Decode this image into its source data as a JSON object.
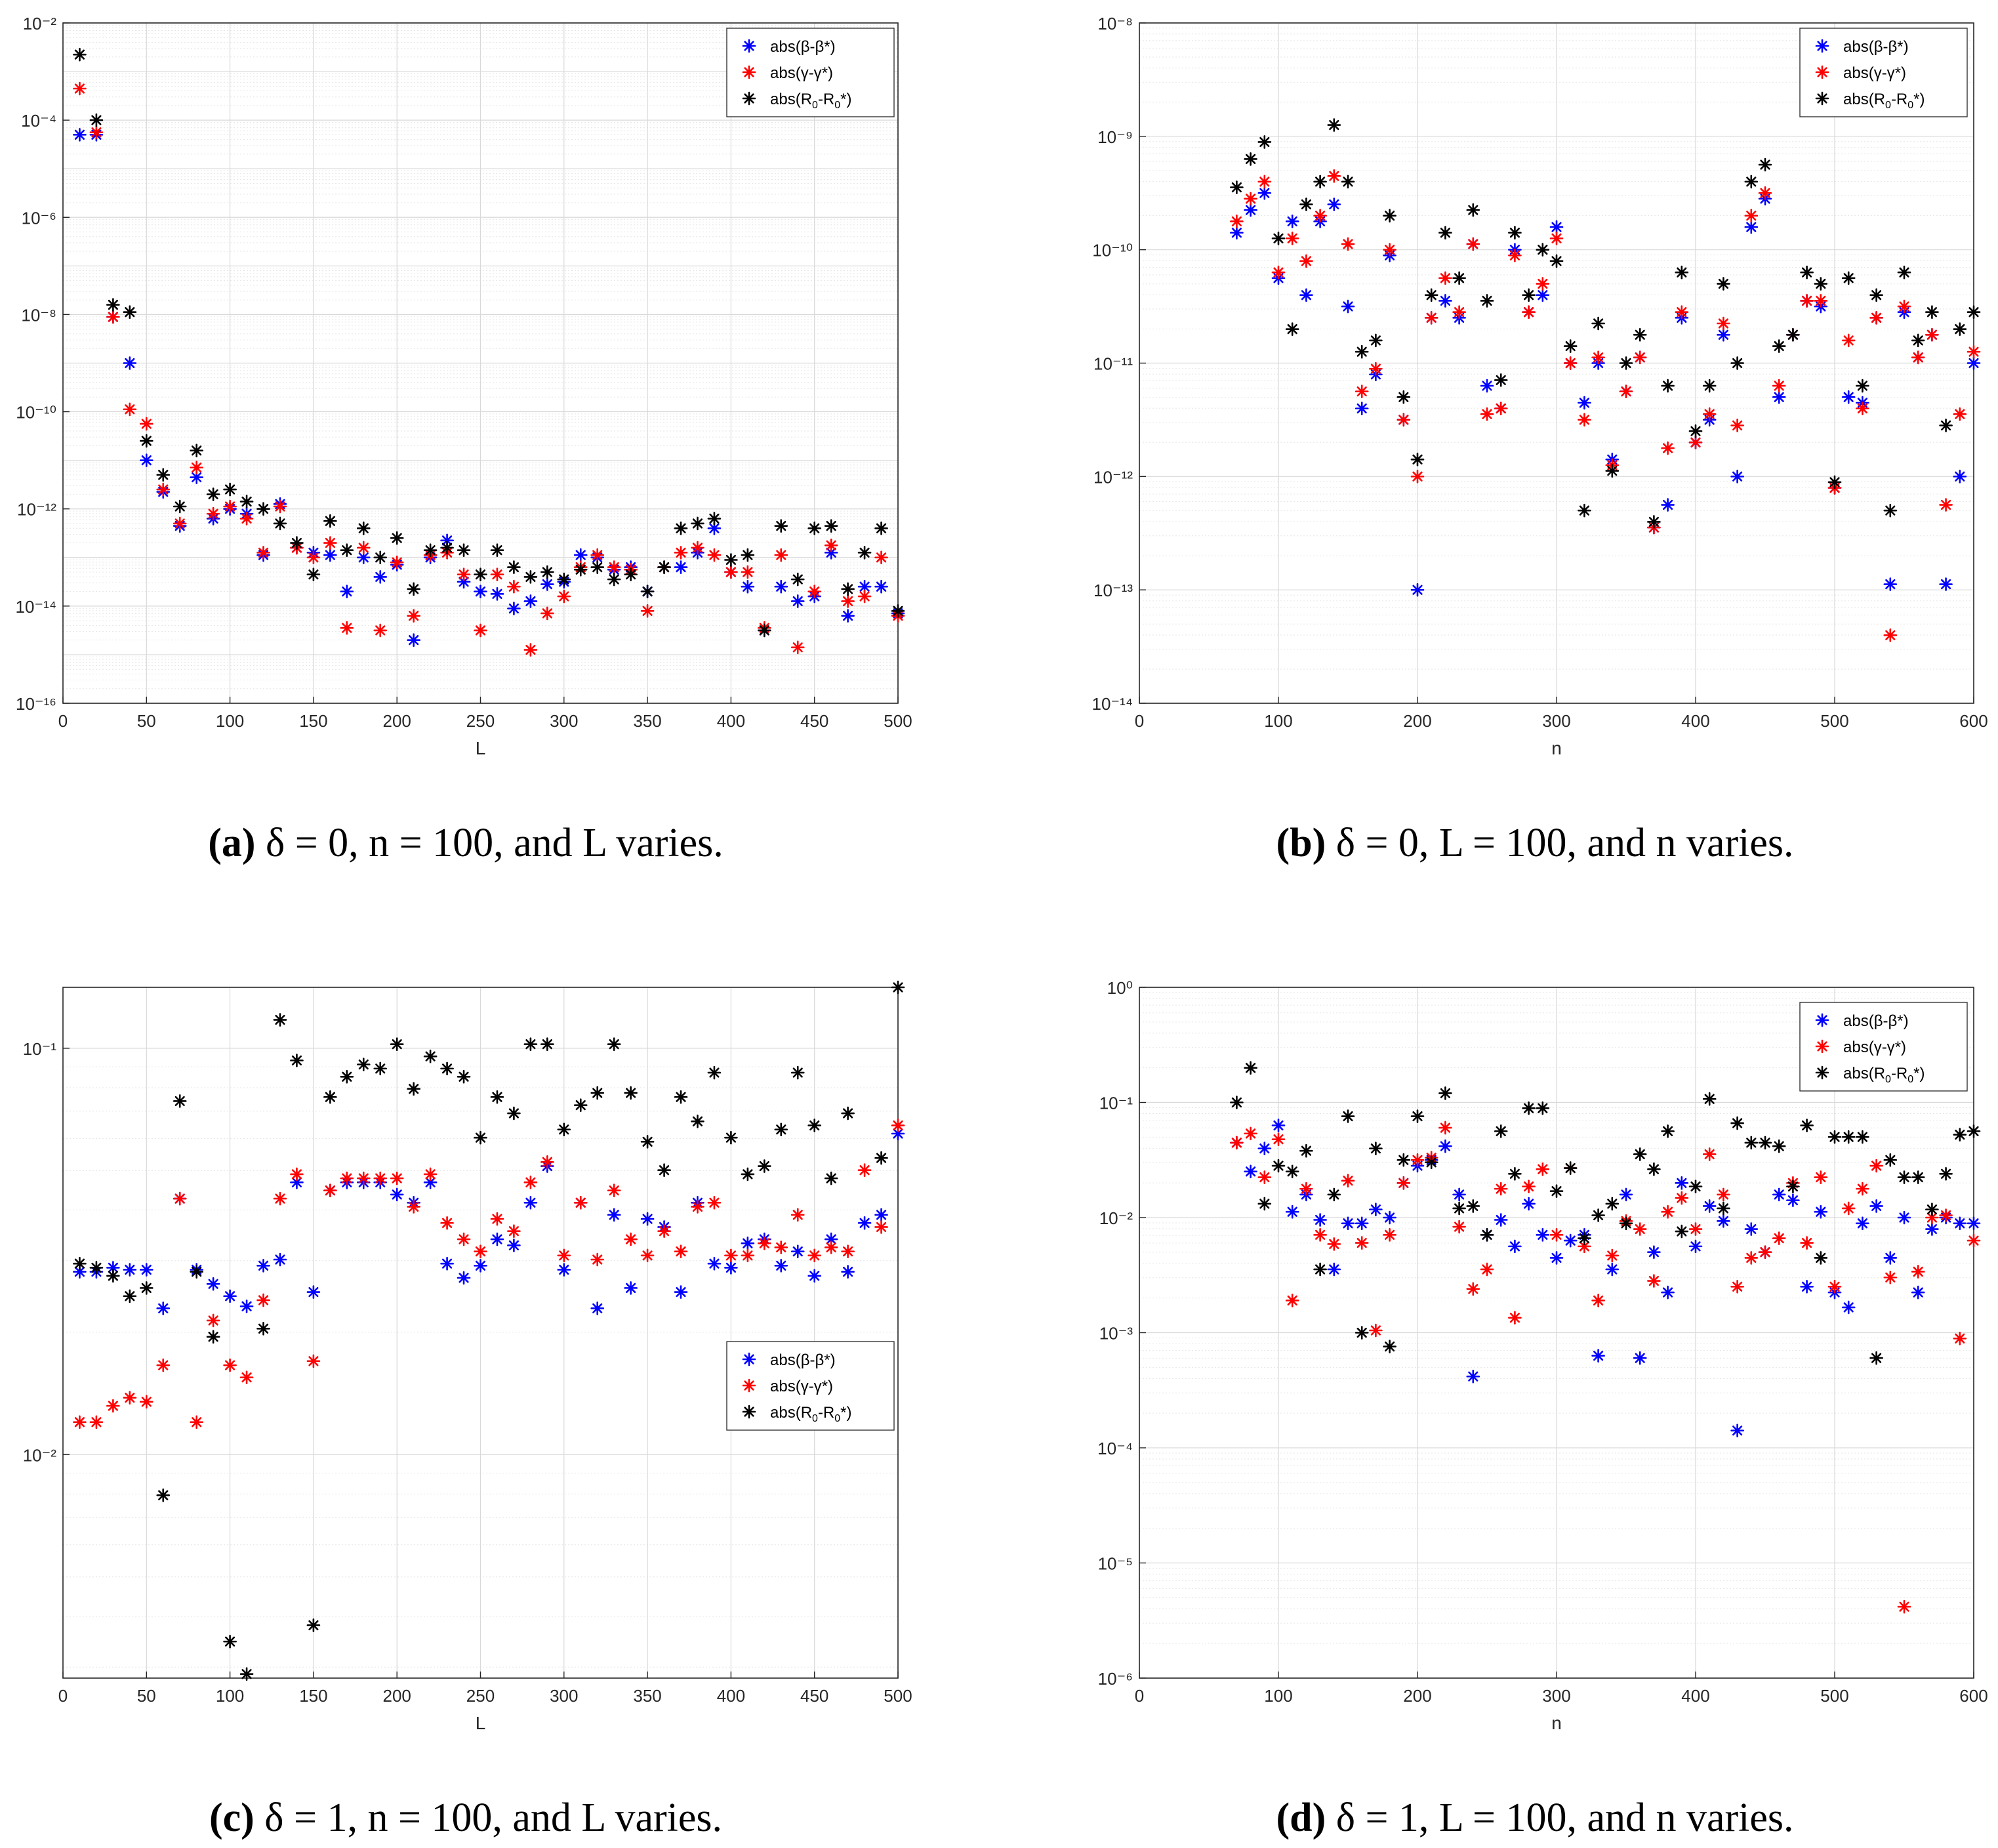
{
  "series_style": {
    "beta": {
      "color": "#0000ff",
      "legend_main": "abs(β-β",
      "legend_tail": "*)"
    },
    "gamma": {
      "color": "#ff0000",
      "legend_main": "abs(γ-γ",
      "legend_tail": "*)"
    },
    "r0": {
      "color": "#000000",
      "legend_prefix": "abs(R",
      "legend_sub1": "0",
      "legend_mid": "-R",
      "legend_sub2": "0",
      "legend_tail": "*)"
    }
  },
  "grid_color": "#e6e6e6",
  "chart_data": [
    {
      "id": "a",
      "type": "scatter",
      "yscale": "log",
      "title": "",
      "xlabel": "L",
      "xlim": [
        0,
        500
      ],
      "xticks": [
        0,
        50,
        100,
        150,
        200,
        250,
        300,
        350,
        400,
        450,
        500
      ],
      "ylim_exp": [
        -16,
        -2
      ],
      "yticks_exp": [
        -16,
        -14,
        -12,
        -10,
        -8,
        -6,
        -4,
        -2
      ],
      "legend_position": "top-right",
      "x": [
        10,
        20,
        30,
        40,
        50,
        60,
        70,
        80,
        90,
        100,
        110,
        120,
        130,
        140,
        150,
        160,
        170,
        180,
        190,
        200,
        210,
        220,
        230,
        240,
        250,
        260,
        270,
        280,
        290,
        300,
        310,
        320,
        330,
        340,
        350,
        360,
        370,
        380,
        390,
        400,
        410,
        420,
        430,
        440,
        450,
        460,
        470,
        480,
        490,
        500
      ],
      "series": [
        {
          "key": "beta",
          "log10": [
            -4.3,
            -4.3,
            -8.05,
            -9.0,
            -11.0,
            -11.65,
            -12.35,
            -11.35,
            -12.2,
            -12.0,
            -12.1,
            -12.95,
            -11.9,
            -12.8,
            -12.9,
            -12.95,
            -13.7,
            -13.0,
            -13.4,
            -13.15,
            -14.7,
            -13.0,
            -12.65,
            -13.5,
            -13.7,
            -13.75,
            -14.05,
            -13.9,
            -13.55,
            -13.5,
            -12.95,
            -13.0,
            -13.25,
            -13.2,
            -13.7,
            -13.2,
            -13.2,
            -12.9,
            -12.4,
            -13.3,
            -13.6,
            -14.5,
            -13.6,
            -13.9,
            -13.8,
            -12.9,
            -14.2,
            -13.6,
            -13.6,
            -14.15
          ]
        },
        {
          "key": "gamma",
          "log10": [
            -3.35,
            -4.25,
            -8.05,
            -9.95,
            -10.25,
            -11.6,
            -12.3,
            -11.15,
            -12.1,
            -11.95,
            -12.2,
            -12.9,
            -11.95,
            -12.8,
            -13.0,
            -12.7,
            -14.45,
            -12.8,
            -14.5,
            -13.1,
            -14.2,
            -12.95,
            -12.9,
            -13.35,
            -14.5,
            -13.35,
            -13.6,
            -14.9,
            -14.15,
            -13.8,
            -13.2,
            -12.95,
            -13.2,
            -13.25,
            -14.1,
            -13.2,
            -12.9,
            -12.8,
            -12.95,
            -13.3,
            -13.3,
            -14.45,
            -12.95,
            -14.85,
            -13.7,
            -12.75,
            -13.9,
            -13.8,
            -13.0,
            -14.2
          ]
        },
        {
          "key": "r0",
          "log10": [
            -2.65,
            -4.0,
            -7.8,
            -7.95,
            -10.6,
            -11.3,
            -11.95,
            -10.8,
            -11.7,
            -11.6,
            -11.85,
            -12.0,
            -12.3,
            -12.7,
            -13.35,
            -12.25,
            -12.85,
            -12.4,
            -13.0,
            -12.6,
            -13.65,
            -12.85,
            -12.8,
            -12.85,
            -13.35,
            -12.85,
            -13.2,
            -13.4,
            -13.3,
            -13.45,
            -13.25,
            -13.2,
            -13.45,
            -13.35,
            -13.7,
            -13.2,
            -12.4,
            -12.3,
            -12.2,
            -13.05,
            -12.95,
            -14.5,
            -12.35,
            -13.45,
            -12.4,
            -12.35,
            -13.65,
            -12.9,
            -12.4,
            -14.1
          ]
        }
      ]
    },
    {
      "id": "b",
      "type": "scatter",
      "yscale": "log",
      "title": "",
      "xlabel": "n",
      "xlim": [
        0,
        600
      ],
      "xticks": [
        0,
        100,
        200,
        300,
        400,
        500,
        600
      ],
      "ylim_exp": [
        -14,
        -8
      ],
      "yticks_exp": [
        -14,
        -13,
        -12,
        -11,
        -10,
        -9,
        -8
      ],
      "legend_position": "top-right",
      "x": [
        70,
        80,
        90,
        100,
        110,
        120,
        130,
        140,
        150,
        160,
        170,
        180,
        190,
        200,
        210,
        220,
        230,
        240,
        250,
        260,
        270,
        280,
        290,
        300,
        310,
        320,
        330,
        340,
        350,
        360,
        370,
        380,
        390,
        400,
        410,
        420,
        430,
        440,
        450,
        460,
        470,
        480,
        490,
        500,
        510,
        520,
        530,
        540,
        550,
        560,
        570,
        580,
        590,
        600
      ],
      "series": [
        {
          "key": "beta",
          "log10": [
            -9.85,
            -9.65,
            -9.5,
            -10.25,
            -9.75,
            -10.4,
            -9.75,
            -9.6,
            -10.5,
            -11.4,
            -11.1,
            -10.05,
            -11.5,
            -13.0,
            -10.6,
            -10.45,
            -10.6,
            -9.95,
            -11.2,
            -11.4,
            -10.0,
            -10.55,
            -10.4,
            -9.8,
            -11.0,
            -11.35,
            -11.0,
            -11.85,
            -11.25,
            -10.95,
            -12.45,
            -12.25,
            -10.6,
            -11.7,
            -11.5,
            -10.75,
            -12.0,
            -9.8,
            -9.55,
            -11.3,
            -10.75,
            -10.45,
            -10.5,
            -12.1,
            -11.3,
            -11.35,
            -10.6,
            -12.95,
            -10.55,
            -10.95,
            -10.75,
            -12.95,
            -12.0,
            -11.0
          ]
        },
        {
          "key": "gamma",
          "log10": [
            -9.75,
            -9.55,
            -9.4,
            -10.2,
            -9.9,
            -10.1,
            -9.7,
            -9.35,
            -9.95,
            -11.25,
            -11.05,
            -10.0,
            -11.5,
            -12.0,
            -10.6,
            -10.25,
            -10.55,
            -9.95,
            -11.45,
            -11.4,
            -10.05,
            -10.55,
            -10.3,
            -9.9,
            -11.0,
            -11.5,
            -10.95,
            -11.9,
            -11.25,
            -10.95,
            -12.45,
            -11.75,
            -10.55,
            -11.7,
            -11.45,
            -10.65,
            -11.55,
            -9.7,
            -9.5,
            -11.2,
            -10.75,
            -10.45,
            -10.45,
            -12.1,
            -10.8,
            -11.4,
            -10.6,
            -13.4,
            -10.5,
            -10.95,
            -10.75,
            -12.25,
            -11.45,
            -10.9
          ]
        },
        {
          "key": "r0",
          "log10": [
            -9.45,
            -9.2,
            -9.05,
            -9.9,
            -10.7,
            -9.6,
            -9.4,
            -8.9,
            -9.4,
            -10.9,
            -10.8,
            -9.7,
            -11.3,
            -11.85,
            -10.4,
            -9.85,
            -10.25,
            -9.65,
            -10.45,
            -11.15,
            -9.85,
            -10.4,
            -10.0,
            -10.1,
            -10.85,
            -12.3,
            -10.65,
            -11.95,
            -11.0,
            -10.75,
            -12.4,
            -11.2,
            -10.2,
            -11.6,
            -11.2,
            -10.3,
            -11.0,
            -9.4,
            -9.25,
            -10.85,
            -10.75,
            -10.2,
            -10.3,
            -12.05,
            -10.25,
            -11.2,
            -10.4,
            -12.3,
            -10.2,
            -10.8,
            -10.55,
            -11.55,
            -10.7,
            -10.55
          ]
        }
      ]
    },
    {
      "id": "c",
      "type": "scatter",
      "yscale": "log",
      "title": "",
      "xlabel": "L",
      "xlim": [
        0,
        500
      ],
      "xticks": [
        0,
        50,
        100,
        150,
        200,
        250,
        300,
        350,
        400,
        450,
        500
      ],
      "ylim_exp": [
        -2.55,
        -0.85
      ],
      "yticks_exp": [
        -2,
        -1
      ],
      "legend_position": "right",
      "x": [
        10,
        20,
        30,
        40,
        50,
        60,
        70,
        80,
        90,
        100,
        110,
        120,
        130,
        140,
        150,
        160,
        170,
        180,
        190,
        200,
        210,
        220,
        230,
        240,
        250,
        260,
        270,
        280,
        290,
        300,
        310,
        320,
        330,
        340,
        350,
        360,
        370,
        380,
        390,
        400,
        410,
        420,
        430,
        440,
        450,
        460,
        470,
        480,
        490,
        500
      ],
      "series": [
        {
          "key": "beta",
          "log10": [
            -1.55,
            -1.55,
            -1.54,
            -1.545,
            -1.545,
            -1.64,
            -1.37,
            -1.545,
            -1.58,
            -1.61,
            -1.635,
            -1.535,
            -1.52,
            -1.33,
            -1.6,
            -1.35,
            -1.33,
            -1.33,
            -1.33,
            -1.36,
            -1.38,
            -1.33,
            -1.53,
            -1.565,
            -1.535,
            -1.47,
            -1.485,
            -1.38,
            -1.29,
            -1.545,
            -1.38,
            -1.64,
            -1.41,
            -1.59,
            -1.42,
            -1.44,
            -1.6,
            -1.38,
            -1.53,
            -1.54,
            -1.48,
            -1.47,
            -1.535,
            -1.5,
            -1.56,
            -1.47,
            -1.55,
            -1.43,
            -1.41,
            -1.21
          ]
        },
        {
          "key": "gamma",
          "log10": [
            -1.92,
            -1.92,
            -1.88,
            -1.86,
            -1.87,
            -1.78,
            -1.37,
            -1.92,
            -1.67,
            -1.78,
            -1.81,
            -1.62,
            -1.37,
            -1.31,
            -1.77,
            -1.35,
            -1.32,
            -1.32,
            -1.32,
            -1.32,
            -1.39,
            -1.31,
            -1.43,
            -1.47,
            -1.5,
            -1.42,
            -1.45,
            -1.33,
            -1.28,
            -1.51,
            -1.38,
            -1.52,
            -1.35,
            -1.47,
            -1.51,
            -1.45,
            -1.5,
            -1.39,
            -1.38,
            -1.51,
            -1.51,
            -1.48,
            -1.49,
            -1.41,
            -1.51,
            -1.49,
            -1.5,
            -1.3,
            -1.44,
            -1.19
          ]
        },
        {
          "key": "r0",
          "log10": [
            -1.53,
            -1.54,
            -1.56,
            -1.61,
            -1.59,
            -2.1,
            -1.13,
            -1.55,
            -1.71,
            -2.46,
            -2.54,
            -1.69,
            -0.93,
            -1.03,
            -2.42,
            -1.12,
            -1.07,
            -1.04,
            -1.05,
            -0.99,
            -1.1,
            -1.02,
            -1.05,
            -1.07,
            -1.22,
            -1.12,
            -1.16,
            -0.99,
            -0.99,
            -1.2,
            -1.14,
            -1.11,
            -0.99,
            -1.11,
            -1.23,
            -1.3,
            -1.12,
            -1.18,
            -1.06,
            -1.22,
            -1.31,
            -1.29,
            -1.2,
            -1.06,
            -1.19,
            -1.32,
            -1.16,
            -0.84,
            -1.27,
            -0.85
          ]
        }
      ]
    },
    {
      "id": "d",
      "type": "scatter",
      "yscale": "log",
      "title": "",
      "xlabel": "n",
      "xlim": [
        0,
        600
      ],
      "xticks": [
        0,
        100,
        200,
        300,
        400,
        500,
        600
      ],
      "ylim_exp": [
        -6,
        0
      ],
      "yticks_exp": [
        -6,
        -5,
        -4,
        -3,
        -2,
        -1,
        0
      ],
      "legend_position": "top-right",
      "x": [
        70,
        80,
        90,
        100,
        110,
        120,
        130,
        140,
        150,
        160,
        170,
        180,
        190,
        200,
        210,
        220,
        230,
        240,
        250,
        260,
        270,
        280,
        290,
        300,
        310,
        320,
        330,
        340,
        350,
        360,
        370,
        380,
        390,
        400,
        410,
        420,
        430,
        440,
        450,
        460,
        470,
        480,
        490,
        500,
        510,
        520,
        530,
        540,
        550,
        560,
        570,
        580,
        590,
        600
      ],
      "series": [
        {
          "key": "beta",
          "log10": [
            -1.35,
            -1.6,
            -1.4,
            -1.2,
            -1.95,
            -1.8,
            -2.02,
            -2.45,
            -2.05,
            -2.05,
            -1.93,
            -2.0,
            -1.7,
            -1.55,
            -1.5,
            -1.38,
            -1.8,
            -3.38,
            -2.15,
            -2.02,
            -2.25,
            -1.88,
            -2.15,
            -2.35,
            -2.2,
            -2.15,
            -3.2,
            -2.45,
            -1.8,
            -3.22,
            -2.3,
            -2.65,
            -1.7,
            -2.25,
            -1.9,
            -2.03,
            -3.85,
            -2.1,
            -2.3,
            -1.8,
            -1.85,
            -2.6,
            -1.95,
            -2.65,
            -2.78,
            -2.05,
            -1.9,
            -2.35,
            -2.0,
            -2.65,
            -2.1,
            -2.0,
            -2.05,
            -2.05
          ]
        },
        {
          "key": "gamma",
          "log10": [
            -1.35,
            -1.27,
            -1.65,
            -1.32,
            -2.72,
            -1.75,
            -2.15,
            -2.23,
            -1.68,
            -2.22,
            -2.98,
            -2.15,
            -1.7,
            -1.5,
            -1.48,
            -1.22,
            -2.08,
            -2.62,
            -2.45,
            -1.75,
            -2.87,
            -1.73,
            -1.58,
            -2.15,
            -1.57,
            -2.25,
            -2.72,
            -2.33,
            -2.03,
            -2.1,
            -2.55,
            -1.95,
            -1.83,
            -2.1,
            -1.45,
            -1.8,
            -2.6,
            -2.35,
            -2.3,
            -2.18,
            -1.7,
            -2.22,
            -1.65,
            -2.6,
            -1.92,
            -1.75,
            -1.55,
            -2.52,
            -5.38,
            -2.47,
            -2.0,
            -1.98,
            -3.05,
            -2.2
          ]
        },
        {
          "key": "r0",
          "log10": [
            -1.0,
            -0.7,
            -1.88,
            -1.55,
            -1.6,
            -1.42,
            -2.45,
            -1.8,
            -1.12,
            -3.0,
            -1.4,
            -3.12,
            -1.5,
            -1.12,
            -1.52,
            -0.92,
            -1.92,
            -1.9,
            -2.15,
            -1.25,
            -1.62,
            -1.05,
            -1.05,
            -1.77,
            -1.57,
            -2.18,
            -1.98,
            -1.88,
            -2.05,
            -1.45,
            -1.58,
            -1.25,
            -2.12,
            -1.73,
            -0.97,
            -1.92,
            -1.18,
            -1.35,
            -1.35,
            -1.38,
            -1.73,
            -1.2,
            -2.35,
            -1.3,
            -1.3,
            -1.3,
            -3.22,
            -1.5,
            -1.65,
            -1.65,
            -1.93,
            -1.62,
            -1.28,
            -1.25
          ]
        }
      ]
    }
  ],
  "captions": [
    {
      "label": "(a)",
      "text": "δ = 0, n = 100, and L varies."
    },
    {
      "label": "(b)",
      "text": "δ = 0, L = 100, and n varies."
    },
    {
      "label": "(c)",
      "text": "δ = 1, n = 100, and L varies."
    },
    {
      "label": "(d)",
      "text": "δ = 1, L = 100, and n varies."
    }
  ]
}
